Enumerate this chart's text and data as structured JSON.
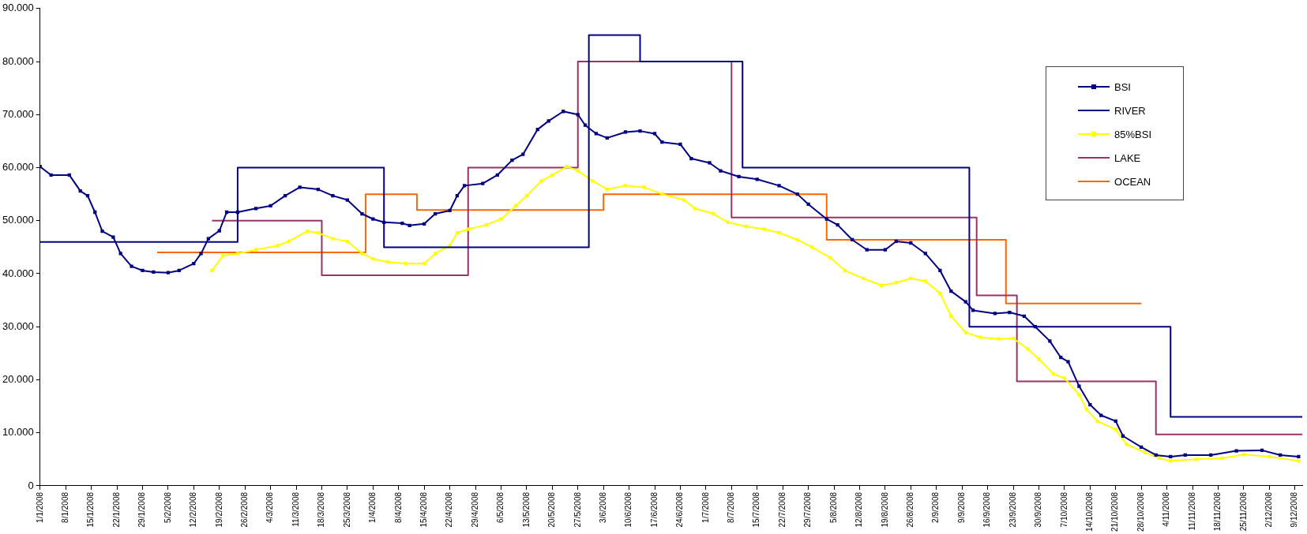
{
  "chart_data": {
    "type": "line",
    "grid": false,
    "legend": "top right",
    "xlim": [
      "2008-01-01",
      "2008-12-11"
    ],
    "xticks": [
      {
        "value": "2008-01-01",
        "label": "1/1/2008"
      },
      {
        "value": "2008-01-08",
        "label": "8/1/2008"
      },
      {
        "value": "2008-01-15",
        "label": "15/1/2008"
      },
      {
        "value": "2008-01-22",
        "label": "22/1/2008"
      },
      {
        "value": "2008-01-29",
        "label": "29/1/2008"
      },
      {
        "value": "2008-02-05",
        "label": "5/2/2008"
      },
      {
        "value": "2008-02-12",
        "label": "12/2/2008"
      },
      {
        "value": "2008-02-19",
        "label": "19/2/2008"
      },
      {
        "value": "2008-02-26",
        "label": "26/2/2008"
      },
      {
        "value": "2008-03-04",
        "label": "4/3/2008"
      },
      {
        "value": "2008-03-11",
        "label": "11/3/2008"
      },
      {
        "value": "2008-03-18",
        "label": "18/3/2008"
      },
      {
        "value": "2008-03-25",
        "label": "25/3/2008"
      },
      {
        "value": "2008-04-01",
        "label": "1/4/2008"
      },
      {
        "value": "2008-04-08",
        "label": "8/4/2008"
      },
      {
        "value": "2008-04-15",
        "label": "15/4/2008"
      },
      {
        "value": "2008-04-22",
        "label": "22/4/2008"
      },
      {
        "value": "2008-04-29",
        "label": "29/4/2008"
      },
      {
        "value": "2008-05-06",
        "label": "6/5/2008"
      },
      {
        "value": "2008-05-13",
        "label": "13/5/2008"
      },
      {
        "value": "2008-05-20",
        "label": "20/5/2008"
      },
      {
        "value": "2008-05-27",
        "label": "27/5/2008"
      },
      {
        "value": "2008-06-03",
        "label": "3/6/2008"
      },
      {
        "value": "2008-06-10",
        "label": "10/6/2008"
      },
      {
        "value": "2008-06-17",
        "label": "17/6/2008"
      },
      {
        "value": "2008-06-24",
        "label": "24/6/2008"
      },
      {
        "value": "2008-07-01",
        "label": "1/7/2008"
      },
      {
        "value": "2008-07-08",
        "label": "8/7/2008"
      },
      {
        "value": "2008-07-15",
        "label": "15/7/2008"
      },
      {
        "value": "2008-07-22",
        "label": "22/7/2008"
      },
      {
        "value": "2008-07-29",
        "label": "29/7/2008"
      },
      {
        "value": "2008-08-05",
        "label": "5/8/2008"
      },
      {
        "value": "2008-08-12",
        "label": "12/8/2008"
      },
      {
        "value": "2008-08-19",
        "label": "19/8/2008"
      },
      {
        "value": "2008-08-26",
        "label": "26/8/2008"
      },
      {
        "value": "2008-09-02",
        "label": "2/9/2008"
      },
      {
        "value": "2008-09-09",
        "label": "9/9/2008"
      },
      {
        "value": "2008-09-16",
        "label": "16/9/2008"
      },
      {
        "value": "2008-09-23",
        "label": "23/9/2008"
      },
      {
        "value": "2008-09-30",
        "label": "30/9/2008"
      },
      {
        "value": "2008-10-07",
        "label": "7/10/2008"
      },
      {
        "value": "2008-10-14",
        "label": "14/10/2008"
      },
      {
        "value": "2008-10-21",
        "label": "21/10/2008"
      },
      {
        "value": "2008-10-28",
        "label": "28/10/2008"
      },
      {
        "value": "2008-11-04",
        "label": "4/11/2008"
      },
      {
        "value": "2008-11-11",
        "label": "11/11/2008"
      },
      {
        "value": "2008-11-18",
        "label": "18/11/2008"
      },
      {
        "value": "2008-11-25",
        "label": "25/11/2008"
      },
      {
        "value": "2008-12-02",
        "label": "2/12/2008"
      },
      {
        "value": "2008-12-09",
        "label": "9/12/2008"
      }
    ],
    "ylim": [
      0,
      90000
    ],
    "yticks": [
      0,
      {
        "value": 10000,
        "label": "10.000"
      },
      {
        "value": 20000,
        "label": "20.000"
      },
      {
        "value": 30000,
        "label": "30.000"
      },
      {
        "value": 40000,
        "label": "40.000"
      },
      {
        "value": 50000,
        "label": "50.000"
      },
      {
        "value": 60000,
        "label": "60.000"
      },
      {
        "value": 70000,
        "label": "70.000"
      },
      {
        "value": 80000,
        "label": "80.000"
      },
      {
        "value": 90000,
        "label": "90.000"
      }
    ],
    "series": [
      {
        "name": "BSI",
        "type": "line",
        "color": "#000080",
        "marker": "square",
        "x": [
          "2008-01-01",
          "2008-01-04",
          "2008-01-09",
          "2008-01-12",
          "2008-01-14",
          "2008-01-16",
          "2008-01-18",
          "2008-01-21",
          "2008-01-23",
          "2008-01-26",
          "2008-01-29",
          "2008-02-01",
          "2008-02-05",
          "2008-02-08",
          "2008-02-12",
          "2008-02-14",
          "2008-02-16",
          "2008-02-19",
          "2008-02-21",
          "2008-02-24",
          "2008-02-29",
          "2008-03-04",
          "2008-03-08",
          "2008-03-12",
          "2008-03-17",
          "2008-03-21",
          "2008-03-25",
          "2008-03-29",
          "2008-04-01",
          "2008-04-04",
          "2008-04-09",
          "2008-04-11",
          "2008-04-15",
          "2008-04-18",
          "2008-04-22",
          "2008-04-24",
          "2008-04-26",
          "2008-05-01",
          "2008-05-05",
          "2008-05-09",
          "2008-05-12",
          "2008-05-16",
          "2008-05-19",
          "2008-05-23",
          "2008-05-27",
          "2008-05-29",
          "2008-06-01",
          "2008-06-04",
          "2008-06-09",
          "2008-06-13",
          "2008-06-17",
          "2008-06-19",
          "2008-06-24",
          "2008-06-27",
          "2008-07-02",
          "2008-07-05",
          "2008-07-10",
          "2008-07-15",
          "2008-07-21",
          "2008-07-26",
          "2008-07-29",
          "2008-08-03",
          "2008-08-06",
          "2008-08-10",
          "2008-08-14",
          "2008-08-19",
          "2008-08-22",
          "2008-08-26",
          "2008-08-30",
          "2008-09-03",
          "2008-09-06",
          "2008-09-10",
          "2008-09-12",
          "2008-09-18",
          "2008-09-22",
          "2008-09-26",
          "2008-09-29",
          "2008-10-03",
          "2008-10-06",
          "2008-10-08",
          "2008-10-11",
          "2008-10-14",
          "2008-10-17",
          "2008-10-21",
          "2008-10-23",
          "2008-10-28",
          "2008-11-01",
          "2008-11-05",
          "2008-11-09",
          "2008-11-16",
          "2008-11-23",
          "2008-11-30",
          "2008-12-05",
          "2008-12-10"
        ],
        "values": [
          60200,
          58600,
          58600,
          55600,
          54700,
          51600,
          48000,
          46900,
          43800,
          41400,
          40600,
          40300,
          40200,
          40600,
          41900,
          43800,
          46600,
          48100,
          51600,
          51600,
          52300,
          52800,
          54700,
          56300,
          55900,
          54700,
          53900,
          51300,
          50300,
          49700,
          49500,
          49100,
          49400,
          51300,
          51900,
          54700,
          56600,
          57000,
          58600,
          61400,
          62500,
          67200,
          68800,
          70600,
          70000,
          68000,
          66400,
          65600,
          66700,
          66900,
          66400,
          64800,
          64400,
          61700,
          60900,
          59400,
          58300,
          57800,
          56600,
          55000,
          53100,
          50300,
          49200,
          46400,
          44500,
          44500,
          46100,
          45800,
          43800,
          40600,
          36700,
          34700,
          33100,
          32500,
          32700,
          32000,
          30000,
          27300,
          24200,
          23400,
          18800,
          15300,
          13300,
          12200,
          9400,
          7300,
          5800,
          5500,
          5800,
          5800,
          6600,
          6700,
          5800,
          5500
        ]
      },
      {
        "name": "RIVER",
        "type": "step",
        "color": "#000080",
        "x": [
          "2008-01-01",
          "2008-02-24",
          "2008-04-04",
          "2008-05-30",
          "2008-06-13",
          "2008-07-11",
          "2008-09-11",
          "2008-11-05",
          "2008-12-11"
        ],
        "values": [
          46000,
          60000,
          45000,
          85000,
          80000,
          60000,
          30000,
          13000,
          13000
        ]
      },
      {
        "name": "85%BSI",
        "type": "line",
        "color": "#ffff00",
        "marker": "square",
        "x": [
          "2008-02-17",
          "2008-02-20",
          "2008-02-24",
          "2008-02-29",
          "2008-03-06",
          "2008-03-09",
          "2008-03-14",
          "2008-03-17",
          "2008-03-21",
          "2008-03-25",
          "2008-03-29",
          "2008-04-01",
          "2008-04-05",
          "2008-04-10",
          "2008-04-15",
          "2008-04-18",
          "2008-04-22",
          "2008-04-24",
          "2008-04-27",
          "2008-05-02",
          "2008-05-06",
          "2008-05-10",
          "2008-05-13",
          "2008-05-17",
          "2008-05-20",
          "2008-05-24",
          "2008-05-27",
          "2008-05-31",
          "2008-06-04",
          "2008-06-09",
          "2008-06-14",
          "2008-06-19",
          "2008-06-25",
          "2008-06-28",
          "2008-07-03",
          "2008-07-07",
          "2008-07-12",
          "2008-07-17",
          "2008-07-21",
          "2008-07-26",
          "2008-07-30",
          "2008-08-04",
          "2008-08-08",
          "2008-08-13",
          "2008-08-18",
          "2008-08-22",
          "2008-08-26",
          "2008-08-30",
          "2008-09-03",
          "2008-09-06",
          "2008-09-10",
          "2008-09-14",
          "2008-09-19",
          "2008-09-23",
          "2008-09-27",
          "2008-09-30",
          "2008-10-04",
          "2008-10-07",
          "2008-10-11",
          "2008-10-13",
          "2008-10-16",
          "2008-10-21",
          "2008-10-24",
          "2008-10-29",
          "2008-11-02",
          "2008-11-05",
          "2008-11-12",
          "2008-11-19",
          "2008-11-25",
          "2008-12-02",
          "2008-12-10"
        ],
        "values": [
          40600,
          43400,
          43800,
          44500,
          45300,
          46100,
          48000,
          47700,
          46600,
          46100,
          43800,
          42800,
          42200,
          41900,
          41900,
          43800,
          45300,
          47700,
          48400,
          49200,
          50300,
          52800,
          54700,
          57500,
          58600,
          60200,
          59400,
          57500,
          55900,
          56600,
          56300,
          55000,
          53900,
          52300,
          51300,
          49700,
          48900,
          48400,
          47700,
          46400,
          45000,
          43000,
          40600,
          39100,
          37800,
          38300,
          39100,
          38600,
          36300,
          32000,
          28900,
          28000,
          27700,
          27800,
          25800,
          23900,
          21100,
          20300,
          17200,
          14400,
          12200,
          10600,
          7800,
          6300,
          5200,
          4700,
          5000,
          5200,
          5900,
          5500,
          4700
        ]
      },
      {
        "name": "LAKE",
        "type": "step",
        "color": "#993366",
        "x": [
          "2008-02-17",
          "2008-03-18",
          "2008-04-27",
          "2008-05-27",
          "2008-07-08",
          "2008-09-13",
          "2008-09-24",
          "2008-11-01",
          "2008-12-11"
        ],
        "values": [
          50000,
          39700,
          60000,
          80000,
          50600,
          35900,
          19700,
          9700,
          9700
        ]
      },
      {
        "name": "OCEAN",
        "type": "step",
        "color": "#ff6600",
        "x": [
          "2008-02-02",
          "2008-03-30",
          "2008-04-13",
          "2008-06-03",
          "2008-08-03",
          "2008-09-21",
          "2008-10-28"
        ],
        "values": [
          44000,
          55000,
          52000,
          55000,
          46400,
          34400,
          34400
        ]
      }
    ]
  }
}
